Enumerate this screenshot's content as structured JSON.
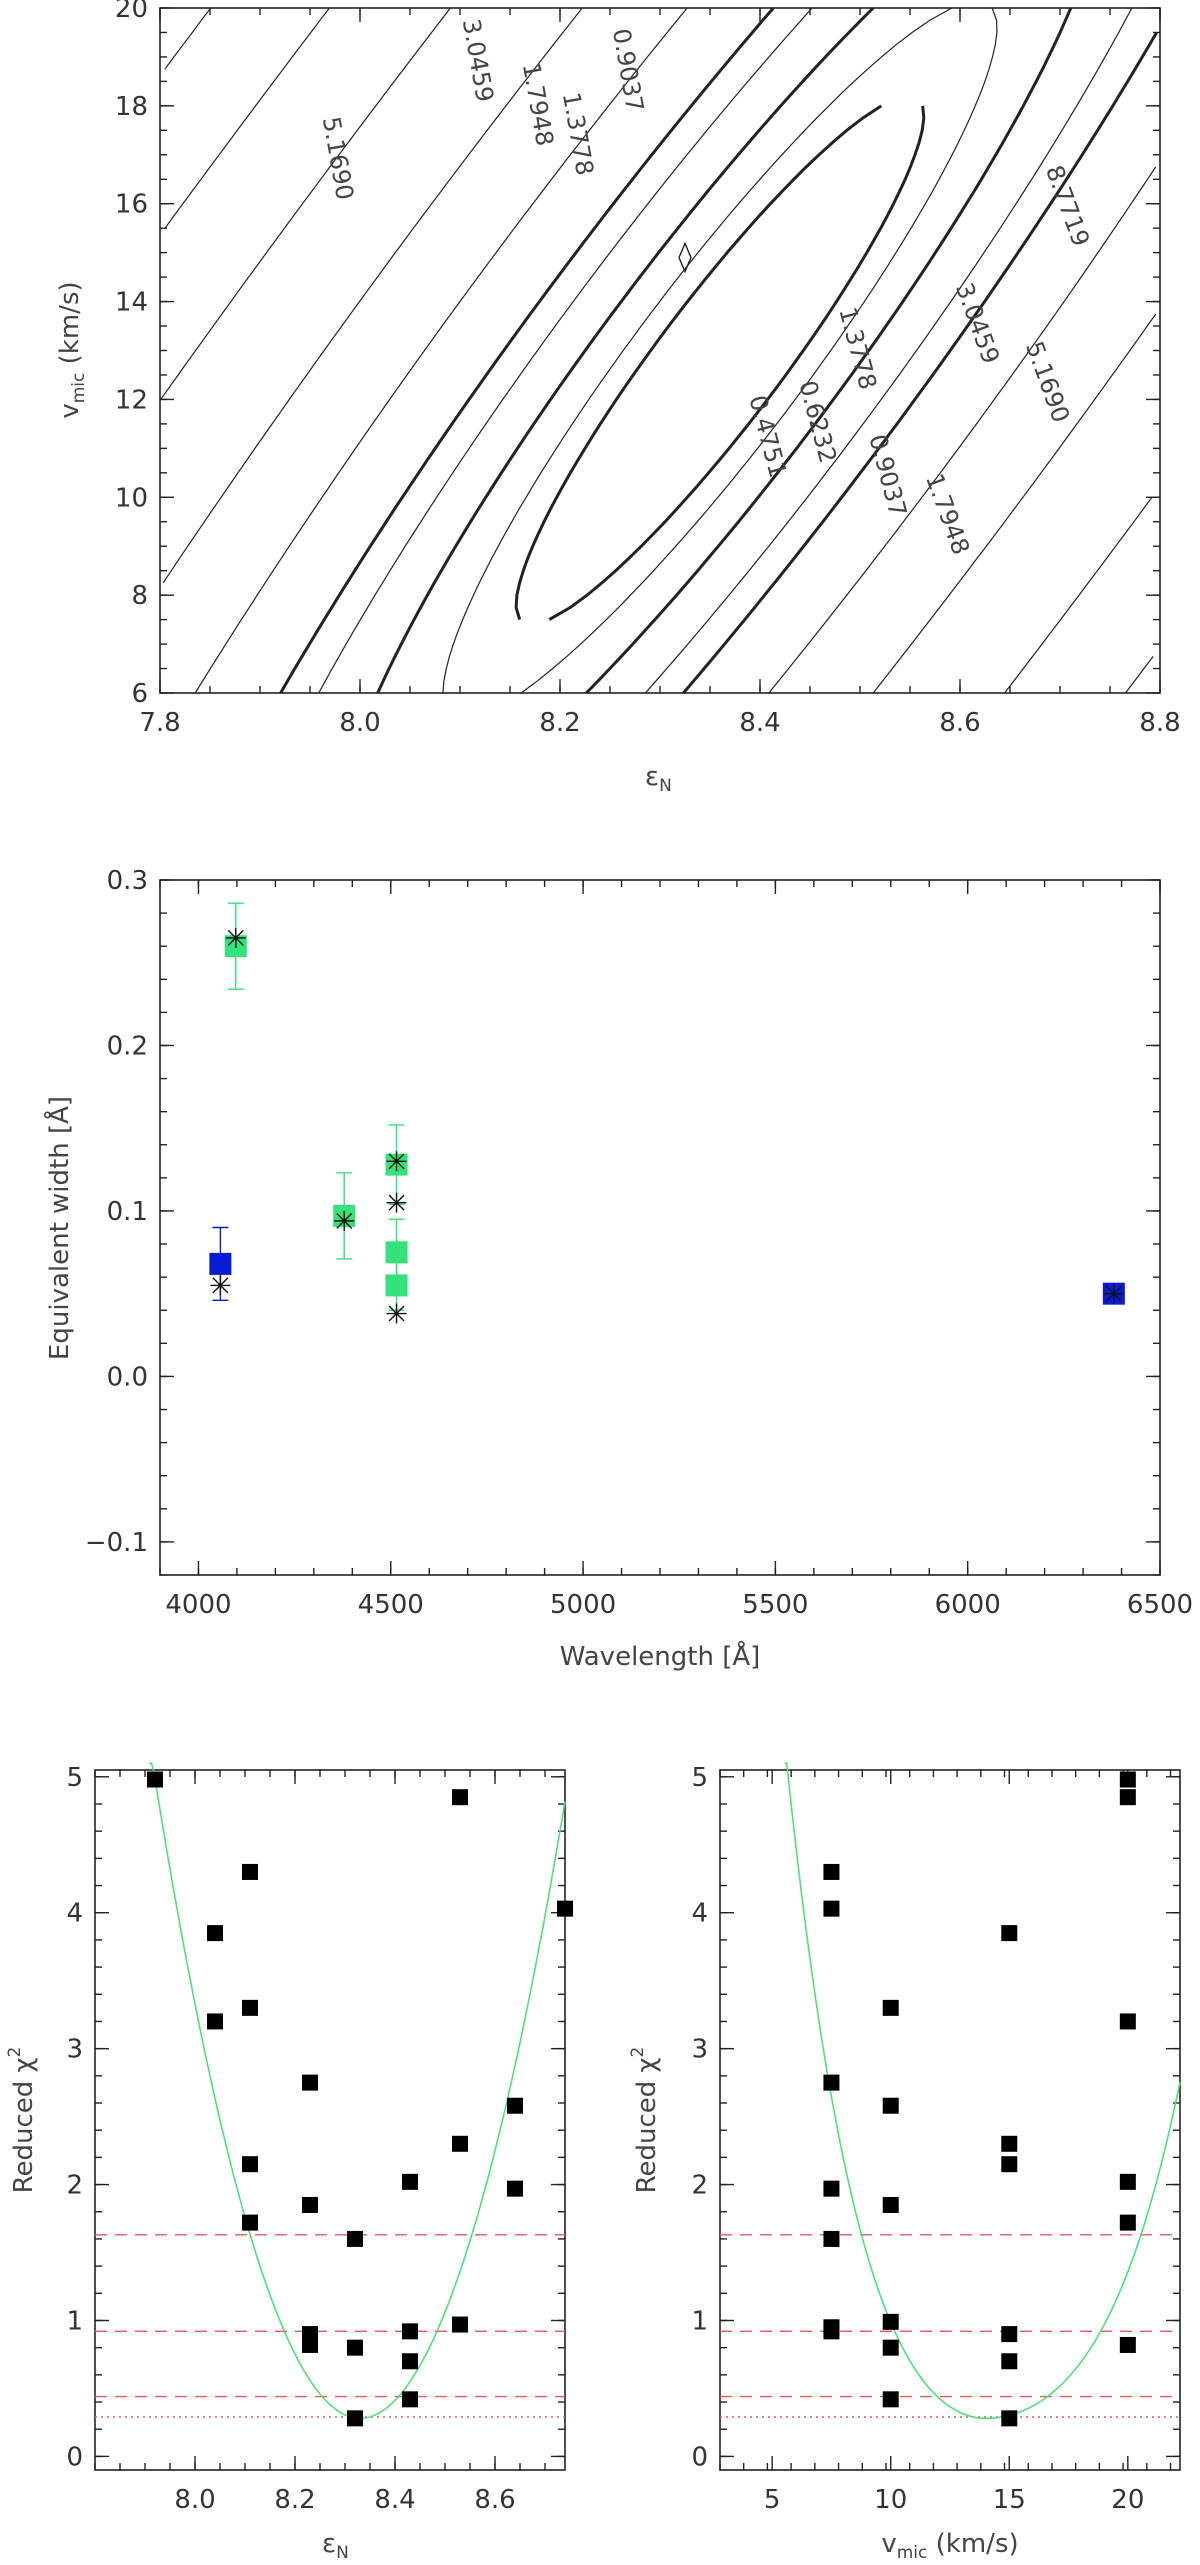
{
  "colors": {
    "axis": "#222222",
    "blue": "#0a1bd6",
    "green": "#33e27a",
    "red_dash": "#e05a5a",
    "fit_curve": "#4ee07a",
    "marker": "#000000"
  },
  "chart_data": [
    {
      "id": "contour",
      "type": "contour",
      "xlabel_main": "ε",
      "xlabel_sub": "N",
      "ylabel_main": "v",
      "ylabel_sub": "mic",
      "ylabel_tail": " (km/s)",
      "xlim": [
        7.8,
        8.8
      ],
      "ylim": [
        6,
        20
      ],
      "xticks": [
        7.8,
        8.0,
        8.2,
        8.4,
        8.6,
        8.8
      ],
      "xtick_labels": [
        "7.8",
        "8.0",
        "8.2",
        "8.4",
        "8.6",
        "8.8"
      ],
      "yticks": [
        6,
        8,
        10,
        12,
        14,
        16,
        18,
        20
      ],
      "ytick_labels": [
        "6",
        "8",
        "10",
        "12",
        "14",
        "16",
        "18",
        "20"
      ],
      "contour_labels": [
        {
          "text": "5.1690",
          "x": 7.97,
          "y": 16.9,
          "rot": 80
        },
        {
          "text": "3.0459",
          "x": 8.11,
          "y": 18.9,
          "rot": 80
        },
        {
          "text": "1.7948",
          "x": 8.17,
          "y": 18.0,
          "rot": 80
        },
        {
          "text": "1.3778",
          "x": 8.21,
          "y": 17.4,
          "rot": 80
        },
        {
          "text": "0.9037",
          "x": 8.26,
          "y": 18.7,
          "rot": 80
        },
        {
          "text": "0.6232",
          "x": 8.45,
          "y": 11.5,
          "rot": 75
        },
        {
          "text": "0.4751",
          "x": 8.4,
          "y": 11.2,
          "rot": 75
        },
        {
          "text": "1.3778",
          "x": 8.49,
          "y": 13.0,
          "rot": 75
        },
        {
          "text": "0.9037",
          "x": 8.52,
          "y": 10.4,
          "rot": 75
        },
        {
          "text": "1.7948",
          "x": 8.58,
          "y": 9.6,
          "rot": 70
        },
        {
          "text": "3.0459",
          "x": 8.61,
          "y": 13.5,
          "rot": 70
        },
        {
          "text": "5.1690",
          "x": 8.68,
          "y": 12.3,
          "rot": 70
        },
        {
          "text": "8.7719",
          "x": 8.7,
          "y": 15.9,
          "rot": 70
        }
      ]
    },
    {
      "id": "ew",
      "type": "scatter",
      "xlabel": "Wavelength [Å]",
      "ylabel": "Equivalent width [Å]",
      "xlim": [
        3900,
        6500
      ],
      "ylim": [
        -0.12,
        0.3
      ],
      "xticks": [
        4000,
        4500,
        5000,
        5500,
        6000,
        6500
      ],
      "xtick_labels": [
        "4000",
        "4500",
        "5000",
        "5500",
        "6000",
        "6500"
      ],
      "yticks": [
        -0.1,
        0.0,
        0.1,
        0.2,
        0.3
      ],
      "ytick_labels": [
        "−0.1",
        "0.0",
        "0.1",
        "0.2",
        "0.3"
      ],
      "observed": [
        {
          "x": 4057,
          "y": 0.068,
          "err": 0.022,
          "color": "blue"
        },
        {
          "x": 4097,
          "y": 0.26,
          "err": 0.026,
          "color": "green"
        },
        {
          "x": 4379,
          "y": 0.097,
          "err": 0.026,
          "color": "green"
        },
        {
          "x": 4515,
          "y": 0.128,
          "err": 0.024,
          "color": "green"
        },
        {
          "x": 4515,
          "y": 0.075,
          "err": 0.02,
          "color": "green"
        },
        {
          "x": 4515,
          "y": 0.055,
          "err": 0.015,
          "color": "green"
        },
        {
          "x": 6380,
          "y": 0.05,
          "err": 0.005,
          "color": "blue"
        }
      ],
      "model": [
        {
          "x": 4057,
          "y": 0.055
        },
        {
          "x": 4097,
          "y": 0.265
        },
        {
          "x": 4379,
          "y": 0.094
        },
        {
          "x": 4515,
          "y": 0.13
        },
        {
          "x": 4515,
          "y": 0.105
        },
        {
          "x": 4515,
          "y": 0.038
        },
        {
          "x": 6380,
          "y": 0.05
        }
      ]
    },
    {
      "id": "chi_eps",
      "type": "scatter",
      "xlabel_main": "ε",
      "xlabel_sub": "N",
      "ylabel_main": "Reduced χ",
      "ylabel_sup": "2",
      "xlim": [
        7.8,
        8.74
      ],
      "ylim": [
        -0.1,
        5.05
      ],
      "xticks": [
        8.0,
        8.2,
        8.4,
        8.6
      ],
      "xtick_labels": [
        "8.0",
        "8.2",
        "8.4",
        "8.6"
      ],
      "yticks": [
        0,
        1,
        2,
        3,
        4,
        5
      ],
      "ytick_labels": [
        "0",
        "1",
        "2",
        "3",
        "4",
        "5"
      ],
      "points": [
        {
          "x": 7.92,
          "y": 4.98
        },
        {
          "x": 8.04,
          "y": 3.85
        },
        {
          "x": 8.04,
          "y": 3.2
        },
        {
          "x": 8.11,
          "y": 4.3
        },
        {
          "x": 8.11,
          "y": 3.3
        },
        {
          "x": 8.11,
          "y": 2.15
        },
        {
          "x": 8.11,
          "y": 1.72
        },
        {
          "x": 8.23,
          "y": 2.75
        },
        {
          "x": 8.23,
          "y": 1.85
        },
        {
          "x": 8.23,
          "y": 0.9
        },
        {
          "x": 8.23,
          "y": 0.82
        },
        {
          "x": 8.32,
          "y": 1.6
        },
        {
          "x": 8.32,
          "y": 0.8
        },
        {
          "x": 8.32,
          "y": 0.28
        },
        {
          "x": 8.43,
          "y": 2.02
        },
        {
          "x": 8.43,
          "y": 0.92
        },
        {
          "x": 8.43,
          "y": 0.7
        },
        {
          "x": 8.43,
          "y": 0.42
        },
        {
          "x": 8.53,
          "y": 4.85
        },
        {
          "x": 8.53,
          "y": 2.3
        },
        {
          "x": 8.53,
          "y": 0.97
        },
        {
          "x": 8.64,
          "y": 2.58
        },
        {
          "x": 8.64,
          "y": 1.97
        },
        {
          "x": 8.74,
          "y": 4.03
        }
      ],
      "fit_curve": {
        "x_min": 7.92,
        "y_at_min": 0.28,
        "x_center": 8.33,
        "k_left": 27.5,
        "k_right": 27.0
      },
      "hlines_dashed": [
        1.63,
        0.92,
        0.44
      ],
      "hline_dotted": 0.29
    },
    {
      "id": "chi_vmic",
      "type": "scatter",
      "xlabel_main": "v",
      "xlabel_sub": "mic",
      "xlabel_tail": " (km/s)",
      "ylabel_main": "Reduced χ",
      "ylabel_sup": "2",
      "xlim": [
        2.8,
        22.2
      ],
      "ylim": [
        -0.1,
        5.05
      ],
      "xticks": [
        5,
        10,
        15,
        20
      ],
      "xtick_labels": [
        "5",
        "10",
        "15",
        "20"
      ],
      "yticks": [
        0,
        1,
        2,
        3,
        4,
        5
      ],
      "ytick_labels": [
        "0",
        "1",
        "2",
        "3",
        "4",
        "5"
      ],
      "points": [
        {
          "x": 7.5,
          "y": 4.3
        },
        {
          "x": 7.5,
          "y": 4.03
        },
        {
          "x": 7.5,
          "y": 2.75
        },
        {
          "x": 7.5,
          "y": 1.97
        },
        {
          "x": 7.5,
          "y": 1.6
        },
        {
          "x": 7.5,
          "y": 0.95
        },
        {
          "x": 7.5,
          "y": 0.92
        },
        {
          "x": 10,
          "y": 3.3
        },
        {
          "x": 10,
          "y": 2.58
        },
        {
          "x": 10,
          "y": 1.85
        },
        {
          "x": 10,
          "y": 0.99
        },
        {
          "x": 10,
          "y": 0.8
        },
        {
          "x": 10,
          "y": 0.42
        },
        {
          "x": 15,
          "y": 3.85
        },
        {
          "x": 15,
          "y": 2.3
        },
        {
          "x": 15,
          "y": 2.15
        },
        {
          "x": 15,
          "y": 0.9
        },
        {
          "x": 15,
          "y": 0.7
        },
        {
          "x": 15,
          "y": 0.28
        },
        {
          "x": 20,
          "y": 4.98
        },
        {
          "x": 20,
          "y": 4.85
        },
        {
          "x": 20,
          "y": 3.2
        },
        {
          "x": 20,
          "y": 2.02
        },
        {
          "x": 20,
          "y": 1.72
        },
        {
          "x": 20,
          "y": 0.82
        }
      ],
      "hlines_dashed": [
        1.63,
        0.92,
        0.44
      ],
      "hline_dotted": 0.29
    }
  ]
}
